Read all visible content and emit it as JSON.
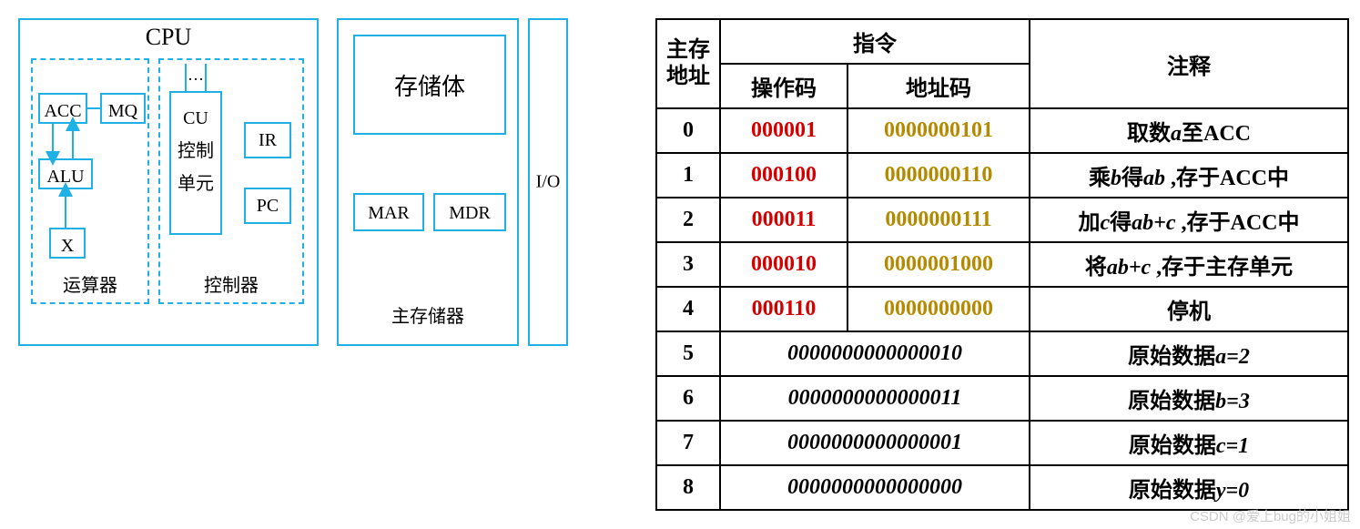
{
  "colors": {
    "border_blue": "#1fb0e6",
    "opcode": "#d40000",
    "addrcode": "#b38a00",
    "table_border": "#000000",
    "watermark": "#cccccc",
    "bg": "#ffffff"
  },
  "diagram": {
    "cpu_title": "CPU",
    "alu_group_label": "运算器",
    "ctrl_group_label": "控制器",
    "mem_group_label": "主存储器",
    "io_label": "I/O",
    "acc": "ACC",
    "mq": "MQ",
    "alu": "ALU",
    "x": "X",
    "cu": "CU",
    "cu_sub1": "控制",
    "cu_sub2": "单元",
    "dots": "…",
    "ir": "IR",
    "pc": "PC",
    "storage_body": "存储体",
    "mar": "MAR",
    "mdr": "MDR"
  },
  "table": {
    "headers": {
      "addr": "主存地址",
      "instr": "指令",
      "opcode": "操作码",
      "addrcode": "地址码",
      "comment": "注释"
    },
    "rows": [
      {
        "addr": "0",
        "op": "000001",
        "ac": "0000000101",
        "comment_parts": [
          "取数",
          "a",
          "至",
          "ACC"
        ]
      },
      {
        "addr": "1",
        "op": "000100",
        "ac": "0000000110",
        "comment_parts": [
          "乘",
          "b",
          "得",
          "ab",
          " ,存于",
          "ACC",
          "中"
        ]
      },
      {
        "addr": "2",
        "op": "000011",
        "ac": "0000000111",
        "comment_parts": [
          "加",
          "c",
          "得",
          "ab+c",
          "  ,存于",
          "ACC",
          "中"
        ]
      },
      {
        "addr": "3",
        "op": "000010",
        "ac": "0000001000",
        "comment_parts": [
          "将",
          "ab+c",
          " ,存于主存单元"
        ]
      },
      {
        "addr": "4",
        "op": "000110",
        "ac": "0000000000",
        "comment_parts": [
          "停机"
        ]
      }
    ],
    "data_rows": [
      {
        "addr": "5",
        "val": "0000000000000010",
        "comment_parts": [
          "原始数据",
          "a=2"
        ]
      },
      {
        "addr": "6",
        "val": "0000000000000011",
        "comment_parts": [
          "原始数据",
          "b=3"
        ]
      },
      {
        "addr": "7",
        "val": "0000000000000001",
        "comment_parts": [
          "原始数据",
          "c=1"
        ]
      },
      {
        "addr": "8",
        "val": "0000000000000000",
        "comment_parts": [
          "原始数据",
          "y=0"
        ]
      }
    ]
  },
  "watermark": "CSDN @爱上bug的小姐姐"
}
